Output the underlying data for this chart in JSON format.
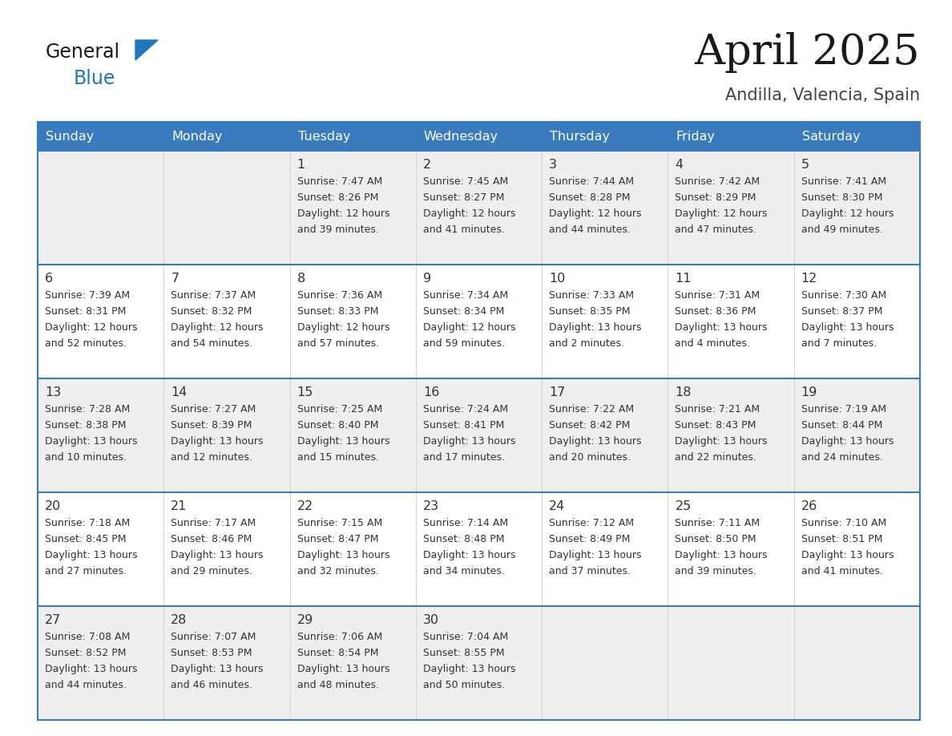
{
  "title": "April 2025",
  "subtitle": "Andilla, Valencia, Spain",
  "header_bg": "#3a7bbf",
  "header_text_color": "#ffffff",
  "day_names": [
    "Sunday",
    "Monday",
    "Tuesday",
    "Wednesday",
    "Thursday",
    "Friday",
    "Saturday"
  ],
  "row_bg_even": "#efefef",
  "row_bg_odd": "#ffffff",
  "border_color": "#3a7bbf",
  "text_color": "#333333",
  "num_color": "#333333",
  "calendar": [
    [
      {
        "day": "",
        "sunrise": "",
        "sunset": "",
        "daylight1": "",
        "daylight2": ""
      },
      {
        "day": "",
        "sunrise": "",
        "sunset": "",
        "daylight1": "",
        "daylight2": ""
      },
      {
        "day": "1",
        "sunrise": "Sunrise: 7:47 AM",
        "sunset": "Sunset: 8:26 PM",
        "daylight1": "Daylight: 12 hours",
        "daylight2": "and 39 minutes."
      },
      {
        "day": "2",
        "sunrise": "Sunrise: 7:45 AM",
        "sunset": "Sunset: 8:27 PM",
        "daylight1": "Daylight: 12 hours",
        "daylight2": "and 41 minutes."
      },
      {
        "day": "3",
        "sunrise": "Sunrise: 7:44 AM",
        "sunset": "Sunset: 8:28 PM",
        "daylight1": "Daylight: 12 hours",
        "daylight2": "and 44 minutes."
      },
      {
        "day": "4",
        "sunrise": "Sunrise: 7:42 AM",
        "sunset": "Sunset: 8:29 PM",
        "daylight1": "Daylight: 12 hours",
        "daylight2": "and 47 minutes."
      },
      {
        "day": "5",
        "sunrise": "Sunrise: 7:41 AM",
        "sunset": "Sunset: 8:30 PM",
        "daylight1": "Daylight: 12 hours",
        "daylight2": "and 49 minutes."
      }
    ],
    [
      {
        "day": "6",
        "sunrise": "Sunrise: 7:39 AM",
        "sunset": "Sunset: 8:31 PM",
        "daylight1": "Daylight: 12 hours",
        "daylight2": "and 52 minutes."
      },
      {
        "day": "7",
        "sunrise": "Sunrise: 7:37 AM",
        "sunset": "Sunset: 8:32 PM",
        "daylight1": "Daylight: 12 hours",
        "daylight2": "and 54 minutes."
      },
      {
        "day": "8",
        "sunrise": "Sunrise: 7:36 AM",
        "sunset": "Sunset: 8:33 PM",
        "daylight1": "Daylight: 12 hours",
        "daylight2": "and 57 minutes."
      },
      {
        "day": "9",
        "sunrise": "Sunrise: 7:34 AM",
        "sunset": "Sunset: 8:34 PM",
        "daylight1": "Daylight: 12 hours",
        "daylight2": "and 59 minutes."
      },
      {
        "day": "10",
        "sunrise": "Sunrise: 7:33 AM",
        "sunset": "Sunset: 8:35 PM",
        "daylight1": "Daylight: 13 hours",
        "daylight2": "and 2 minutes."
      },
      {
        "day": "11",
        "sunrise": "Sunrise: 7:31 AM",
        "sunset": "Sunset: 8:36 PM",
        "daylight1": "Daylight: 13 hours",
        "daylight2": "and 4 minutes."
      },
      {
        "day": "12",
        "sunrise": "Sunrise: 7:30 AM",
        "sunset": "Sunset: 8:37 PM",
        "daylight1": "Daylight: 13 hours",
        "daylight2": "and 7 minutes."
      }
    ],
    [
      {
        "day": "13",
        "sunrise": "Sunrise: 7:28 AM",
        "sunset": "Sunset: 8:38 PM",
        "daylight1": "Daylight: 13 hours",
        "daylight2": "and 10 minutes."
      },
      {
        "day": "14",
        "sunrise": "Sunrise: 7:27 AM",
        "sunset": "Sunset: 8:39 PM",
        "daylight1": "Daylight: 13 hours",
        "daylight2": "and 12 minutes."
      },
      {
        "day": "15",
        "sunrise": "Sunrise: 7:25 AM",
        "sunset": "Sunset: 8:40 PM",
        "daylight1": "Daylight: 13 hours",
        "daylight2": "and 15 minutes."
      },
      {
        "day": "16",
        "sunrise": "Sunrise: 7:24 AM",
        "sunset": "Sunset: 8:41 PM",
        "daylight1": "Daylight: 13 hours",
        "daylight2": "and 17 minutes."
      },
      {
        "day": "17",
        "sunrise": "Sunrise: 7:22 AM",
        "sunset": "Sunset: 8:42 PM",
        "daylight1": "Daylight: 13 hours",
        "daylight2": "and 20 minutes."
      },
      {
        "day": "18",
        "sunrise": "Sunrise: 7:21 AM",
        "sunset": "Sunset: 8:43 PM",
        "daylight1": "Daylight: 13 hours",
        "daylight2": "and 22 minutes."
      },
      {
        "day": "19",
        "sunrise": "Sunrise: 7:19 AM",
        "sunset": "Sunset: 8:44 PM",
        "daylight1": "Daylight: 13 hours",
        "daylight2": "and 24 minutes."
      }
    ],
    [
      {
        "day": "20",
        "sunrise": "Sunrise: 7:18 AM",
        "sunset": "Sunset: 8:45 PM",
        "daylight1": "Daylight: 13 hours",
        "daylight2": "and 27 minutes."
      },
      {
        "day": "21",
        "sunrise": "Sunrise: 7:17 AM",
        "sunset": "Sunset: 8:46 PM",
        "daylight1": "Daylight: 13 hours",
        "daylight2": "and 29 minutes."
      },
      {
        "day": "22",
        "sunrise": "Sunrise: 7:15 AM",
        "sunset": "Sunset: 8:47 PM",
        "daylight1": "Daylight: 13 hours",
        "daylight2": "and 32 minutes."
      },
      {
        "day": "23",
        "sunrise": "Sunrise: 7:14 AM",
        "sunset": "Sunset: 8:48 PM",
        "daylight1": "Daylight: 13 hours",
        "daylight2": "and 34 minutes."
      },
      {
        "day": "24",
        "sunrise": "Sunrise: 7:12 AM",
        "sunset": "Sunset: 8:49 PM",
        "daylight1": "Daylight: 13 hours",
        "daylight2": "and 37 minutes."
      },
      {
        "day": "25",
        "sunrise": "Sunrise: 7:11 AM",
        "sunset": "Sunset: 8:50 PM",
        "daylight1": "Daylight: 13 hours",
        "daylight2": "and 39 minutes."
      },
      {
        "day": "26",
        "sunrise": "Sunrise: 7:10 AM",
        "sunset": "Sunset: 8:51 PM",
        "daylight1": "Daylight: 13 hours",
        "daylight2": "and 41 minutes."
      }
    ],
    [
      {
        "day": "27",
        "sunrise": "Sunrise: 7:08 AM",
        "sunset": "Sunset: 8:52 PM",
        "daylight1": "Daylight: 13 hours",
        "daylight2": "and 44 minutes."
      },
      {
        "day": "28",
        "sunrise": "Sunrise: 7:07 AM",
        "sunset": "Sunset: 8:53 PM",
        "daylight1": "Daylight: 13 hours",
        "daylight2": "and 46 minutes."
      },
      {
        "day": "29",
        "sunrise": "Sunrise: 7:06 AM",
        "sunset": "Sunset: 8:54 PM",
        "daylight1": "Daylight: 13 hours",
        "daylight2": "and 48 minutes."
      },
      {
        "day": "30",
        "sunrise": "Sunrise: 7:04 AM",
        "sunset": "Sunset: 8:55 PM",
        "daylight1": "Daylight: 13 hours",
        "daylight2": "and 50 minutes."
      },
      {
        "day": "",
        "sunrise": "",
        "sunset": "",
        "daylight1": "",
        "daylight2": ""
      },
      {
        "day": "",
        "sunrise": "",
        "sunset": "",
        "daylight1": "",
        "daylight2": ""
      },
      {
        "day": "",
        "sunrise": "",
        "sunset": "",
        "daylight1": "",
        "daylight2": ""
      }
    ]
  ],
  "logo_general_color": "#1a1a1a",
  "logo_blue_color": "#2077c0",
  "logo_triangle_color": "#2077c0",
  "fig_width": 11.88,
  "fig_height": 9.18,
  "dpi": 100
}
